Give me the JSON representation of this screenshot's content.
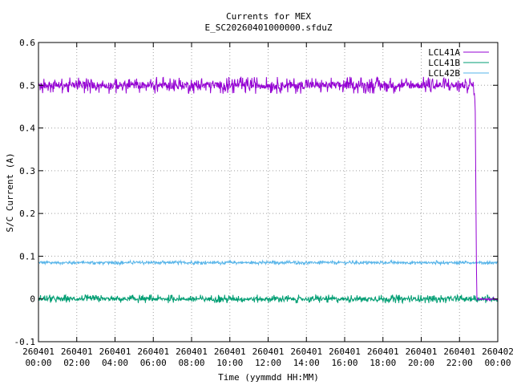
{
  "chart_data": {
    "type": "line",
    "title": "Currents for MEX",
    "subtitle": "E_SC20260401000000.sfduZ",
    "xlabel": "Time (yymmdd HH:MM)",
    "ylabel": "S/C Current (A)",
    "ylim": [
      -0.1,
      0.6
    ],
    "yticks": [
      "-0.1",
      "0",
      "0.1",
      "0.2",
      "0.3",
      "0.4",
      "0.5",
      "0.6"
    ],
    "xlim_hours": [
      0,
      24
    ],
    "xticks": [
      {
        "date": "260401",
        "time": "00:00"
      },
      {
        "date": "260401",
        "time": "02:00"
      },
      {
        "date": "260401",
        "time": "04:00"
      },
      {
        "date": "260401",
        "time": "06:00"
      },
      {
        "date": "260401",
        "time": "08:00"
      },
      {
        "date": "260401",
        "time": "10:00"
      },
      {
        "date": "260401",
        "time": "12:00"
      },
      {
        "date": "260401",
        "time": "14:00"
      },
      {
        "date": "260401",
        "time": "16:00"
      },
      {
        "date": "260401",
        "time": "18:00"
      },
      {
        "date": "260401",
        "time": "20:00"
      },
      {
        "date": "260401",
        "time": "22:00"
      },
      {
        "date": "260402",
        "time": "00:00"
      }
    ],
    "grid": true,
    "legend_position": "top-right",
    "series": [
      {
        "name": "LCL41A",
        "color": "#9400d3",
        "points": [
          [
            0,
            0.5
          ],
          [
            22.75,
            0.5
          ],
          [
            22.82,
            0.45
          ],
          [
            22.9,
            0.0
          ],
          [
            24,
            0.0
          ]
        ],
        "noise": [
          0.48,
          0.52
        ]
      },
      {
        "name": "LCL41B",
        "color": "#009e73",
        "points": [
          [
            0,
            0.0
          ],
          [
            24,
            0.0
          ]
        ],
        "noise": [
          -0.01,
          0.01
        ]
      },
      {
        "name": "LCL42B",
        "color": "#56b4e9",
        "points": [
          [
            0,
            0.085
          ],
          [
            22.85,
            0.085
          ],
          [
            22.9,
            0.085
          ],
          [
            24,
            0.085
          ]
        ],
        "noise": [
          0.08,
          0.09
        ]
      }
    ]
  }
}
